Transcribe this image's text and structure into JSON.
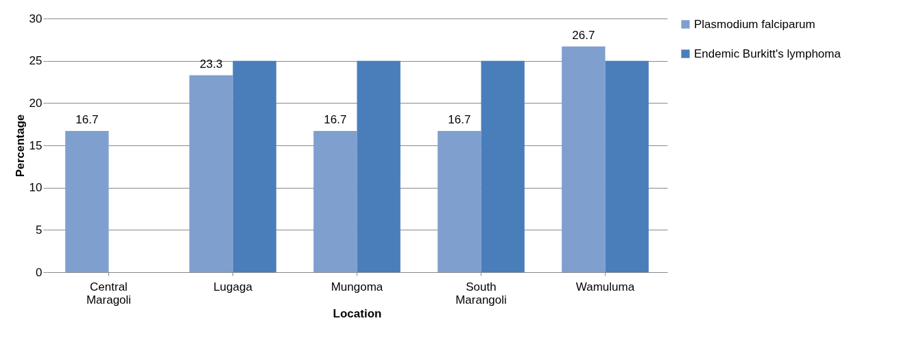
{
  "chart_data": {
    "type": "bar",
    "xlabel": "Location",
    "ylabel": "Percentage",
    "categories": [
      "Central Maragoli",
      "Lugaga",
      "Mungoma",
      "South Marangoli",
      "Wamuluma"
    ],
    "series": [
      {
        "name": "Plasmodium falciparum",
        "color": "#7f9fcf",
        "values": [
          16.7,
          23.3,
          16.7,
          16.7,
          26.7
        ],
        "value_labels": [
          "16.7",
          "23.3",
          "16.7",
          "16.7",
          "26.7"
        ]
      },
      {
        "name": "Endemic Burkitt's lymphoma",
        "color": "#4a7ebb",
        "values": [
          null,
          25,
          25,
          25,
          25
        ]
      }
    ],
    "ylim": [
      0,
      30
    ],
    "yticks": [
      0,
      5,
      10,
      15,
      20,
      25,
      30
    ],
    "grid": "y",
    "legend": "right"
  }
}
